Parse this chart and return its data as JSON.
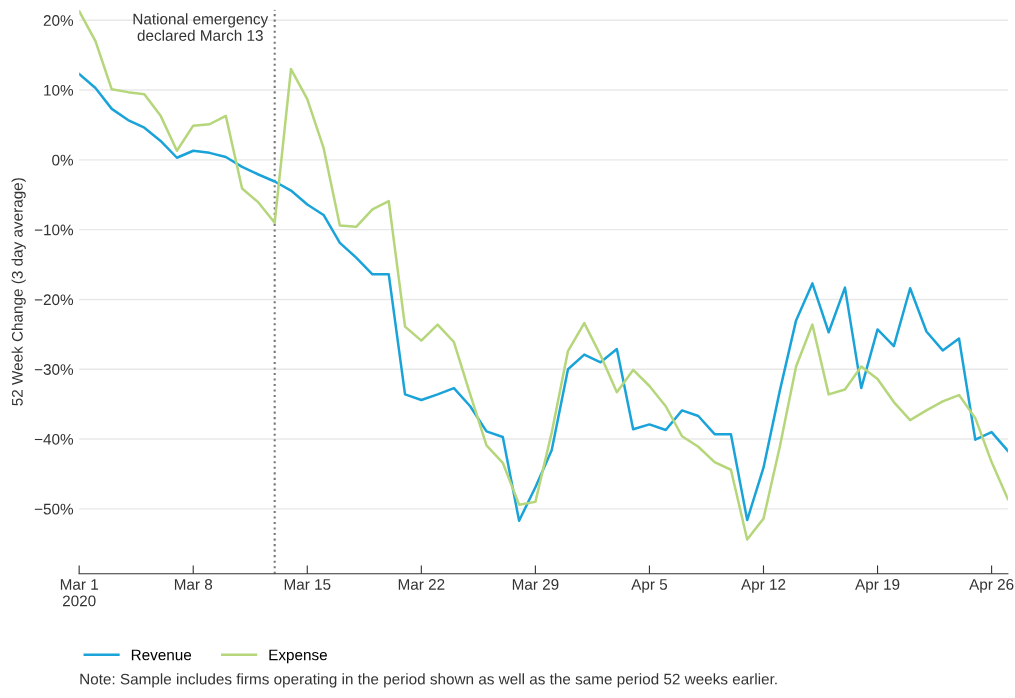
{
  "chart_data": {
    "type": "line",
    "ylabel": "52 Week Change (3 day average)",
    "x": [
      "2020-03-01",
      "2020-03-02",
      "2020-03-03",
      "2020-03-04",
      "2020-03-05",
      "2020-03-06",
      "2020-03-07",
      "2020-03-08",
      "2020-03-09",
      "2020-03-10",
      "2020-03-11",
      "2020-03-12",
      "2020-03-13",
      "2020-03-14",
      "2020-03-15",
      "2020-03-16",
      "2020-03-17",
      "2020-03-18",
      "2020-03-19",
      "2020-03-20",
      "2020-03-21",
      "2020-03-22",
      "2020-03-23",
      "2020-03-24",
      "2020-03-25",
      "2020-03-26",
      "2020-03-27",
      "2020-03-28",
      "2020-03-29",
      "2020-03-30",
      "2020-03-31",
      "2020-04-01",
      "2020-04-02",
      "2020-04-03",
      "2020-04-04",
      "2020-04-05",
      "2020-04-06",
      "2020-04-07",
      "2020-04-08",
      "2020-04-09",
      "2020-04-10",
      "2020-04-11",
      "2020-04-12",
      "2020-04-13",
      "2020-04-14",
      "2020-04-15",
      "2020-04-16",
      "2020-04-17",
      "2020-04-18",
      "2020-04-19",
      "2020-04-20",
      "2020-04-21",
      "2020-04-22",
      "2020-04-23",
      "2020-04-24",
      "2020-04-25",
      "2020-04-26",
      "2020-04-27"
    ],
    "series": [
      {
        "name": "Revenue",
        "color": "#1aa3d9",
        "values": [
          12.3,
          10.3,
          7.3,
          5.7,
          4.6,
          2.7,
          0.3,
          1.3,
          1.0,
          0.4,
          -1.0,
          -2.1,
          -3.1,
          -4.4,
          -6.4,
          -7.9,
          -11.9,
          -14.0,
          -16.4,
          -16.4,
          -33.6,
          -34.4,
          -33.6,
          -32.7,
          -35.3,
          -38.9,
          -39.7,
          -51.7,
          -46.9,
          -41.6,
          -30.0,
          -27.9,
          -29.0,
          -27.1,
          -38.6,
          -37.9,
          -38.7,
          -35.9,
          -36.7,
          -39.3,
          -39.3,
          -51.6,
          -44.1,
          -33.1,
          -23.0,
          -17.7,
          -24.7,
          -18.3,
          -32.7,
          -24.3,
          -26.7,
          -18.4,
          -24.6,
          -27.3,
          -25.6,
          -40.1,
          -39.0,
          -41.7
        ]
      },
      {
        "name": "Expense",
        "color": "#b5d67a",
        "values": [
          21.3,
          17.0,
          10.1,
          9.7,
          9.4,
          6.3,
          1.3,
          4.9,
          5.1,
          6.3,
          -4.1,
          -6.1,
          -9.0,
          13.0,
          8.7,
          1.7,
          -9.4,
          -9.6,
          -7.1,
          -5.9,
          -23.9,
          -25.9,
          -23.6,
          -26.1,
          -33.6,
          -40.9,
          -43.4,
          -49.4,
          -49.0,
          -39.1,
          -27.4,
          -23.4,
          -28.0,
          -33.3,
          -30.1,
          -32.4,
          -35.3,
          -39.6,
          -41.1,
          -43.3,
          -44.4,
          -54.4,
          -51.4,
          -41.1,
          -29.6,
          -23.6,
          -33.6,
          -32.9,
          -29.6,
          -31.4,
          -34.7,
          -37.3,
          -35.9,
          -34.6,
          -33.7,
          -37.0,
          -43.3,
          -48.6
        ]
      }
    ],
    "xlim": [
      "2020-03-01",
      "2020-04-27"
    ],
    "xticks": [
      {
        "value": "2020-03-01",
        "label": "Mar 1\n2020"
      },
      {
        "value": "2020-03-08",
        "label": "Mar 8"
      },
      {
        "value": "2020-03-15",
        "label": "Mar 15"
      },
      {
        "value": "2020-03-22",
        "label": "Mar 22"
      },
      {
        "value": "2020-03-29",
        "label": "Mar 29"
      },
      {
        "value": "2020-04-05",
        "label": "Apr 5"
      },
      {
        "value": "2020-04-12",
        "label": "Apr 12"
      },
      {
        "value": "2020-04-19",
        "label": "Apr 19"
      },
      {
        "value": "2020-04-26",
        "label": "Apr 26"
      }
    ],
    "ylim": [
      -59.3,
      21.5
    ],
    "yticks": [
      {
        "value": 20,
        "label": "20%"
      },
      {
        "value": 10,
        "label": "10%"
      },
      {
        "value": 0,
        "label": "0%"
      },
      {
        "value": -10,
        "label": "−10%"
      },
      {
        "value": -20,
        "label": "−20%"
      },
      {
        "value": -30,
        "label": "−30%"
      },
      {
        "value": -40,
        "label": "−40%"
      },
      {
        "value": -50,
        "label": "−50%"
      }
    ],
    "grid": "y",
    "legend": "bottom left",
    "ref_lines": [
      {
        "axis": "x",
        "value": "2020-03-13",
        "label": "National emergency\ndeclared March 13",
        "color": "#777777",
        "line_style": "dotted"
      }
    ],
    "annotations": [
      "Note: Sample includes firms operating in the period shown as well as the same period 52 weeks earlier."
    ]
  }
}
